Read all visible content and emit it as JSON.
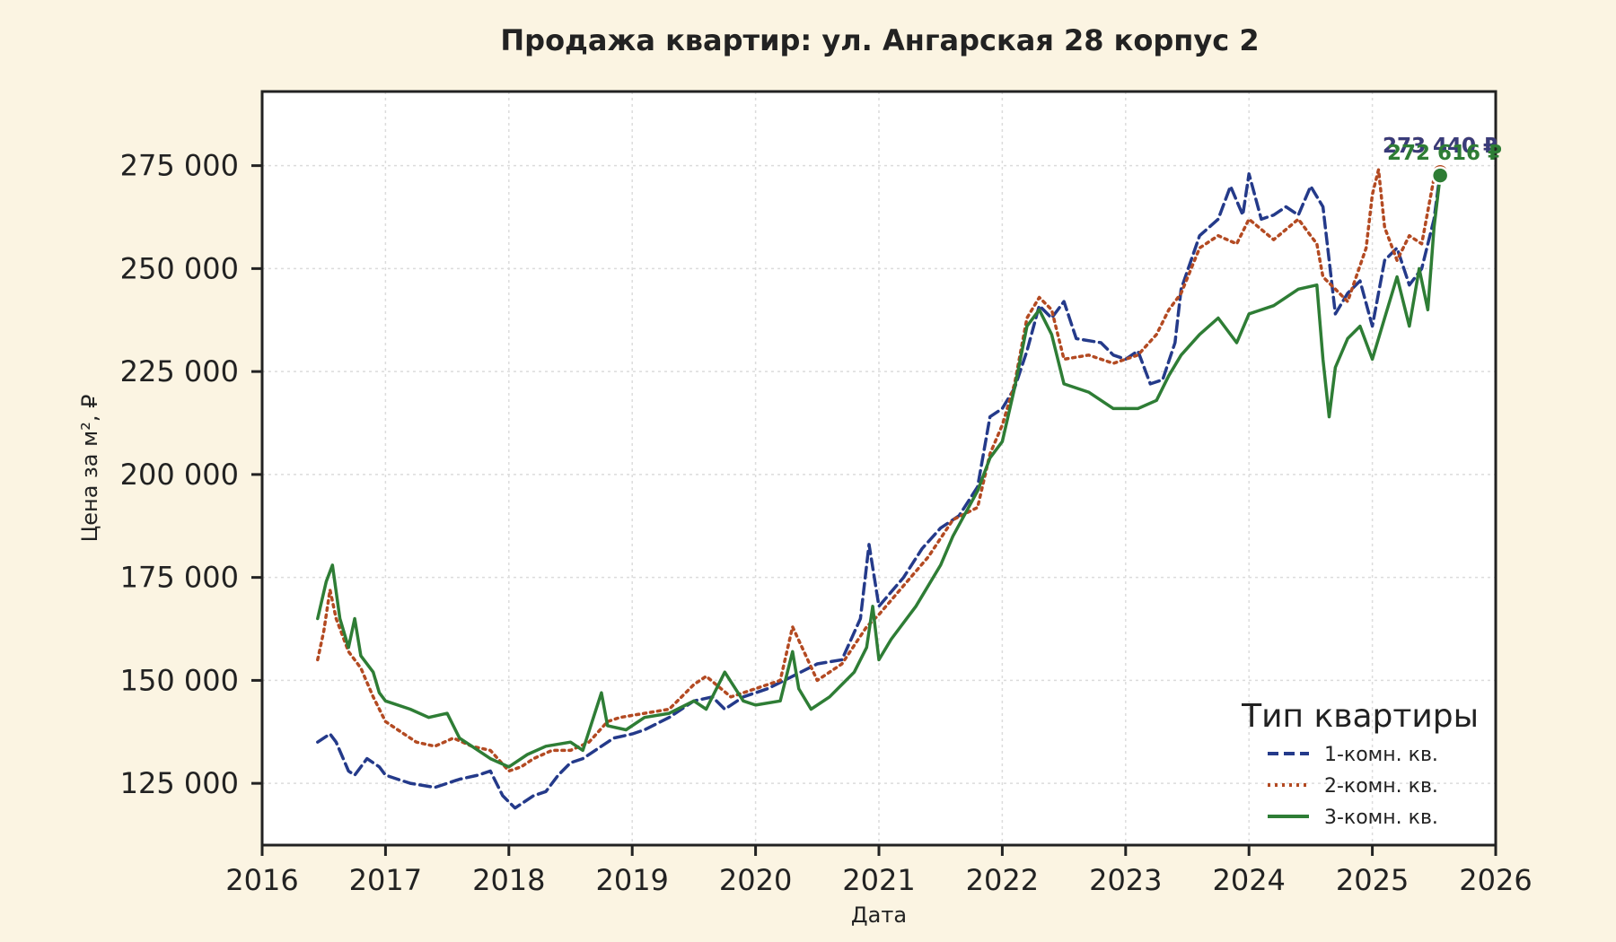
{
  "chart_data": {
    "type": "line",
    "title": "Продажа квартир: ул. Ангарская 28 корпус 2",
    "xlabel": "Дата",
    "ylabel": "Цена за м², ₽",
    "xlim": [
      2016,
      2026
    ],
    "ylim": [
      110000,
      293000
    ],
    "xticks": [
      2016,
      2017,
      2018,
      2019,
      2020,
      2021,
      2022,
      2023,
      2024,
      2025,
      2026
    ],
    "yticks": [
      125000,
      150000,
      175000,
      200000,
      225000,
      250000,
      275000
    ],
    "ytick_labels": [
      "125 000",
      "150 000",
      "175 000",
      "200 000",
      "225 000",
      "250 000",
      "275 000"
    ],
    "grid": true,
    "legend": {
      "title": "Тип квартиры",
      "placement": "lower-right"
    },
    "series": [
      {
        "name": "1-комн. кв.",
        "color": "#243a8a",
        "style": "dashed",
        "x": [
          2016.45,
          2016.55,
          2016.6,
          2016.7,
          2016.75,
          2016.85,
          2016.95,
          2017.0,
          2017.1,
          2017.2,
          2017.4,
          2017.6,
          2017.75,
          2017.85,
          2017.95,
          2018.05,
          2018.1,
          2018.2,
          2018.3,
          2018.4,
          2018.5,
          2018.6,
          2018.7,
          2018.85,
          2019.0,
          2019.1,
          2019.3,
          2019.5,
          2019.65,
          2019.75,
          2019.9,
          2020.1,
          2020.3,
          2020.5,
          2020.7,
          2020.85,
          2020.92,
          2021.0,
          2021.2,
          2021.35,
          2021.5,
          2021.65,
          2021.8,
          2021.9,
          2022.0,
          2022.1,
          2022.2,
          2022.3,
          2022.4,
          2022.5,
          2022.6,
          2022.8,
          2022.9,
          2023.0,
          2023.1,
          2023.2,
          2023.3,
          2023.4,
          2023.45,
          2023.6,
          2023.75,
          2023.85,
          2023.95,
          2024.0,
          2024.1,
          2024.2,
          2024.3,
          2024.4,
          2024.5,
          2024.6,
          2024.7,
          2024.8,
          2024.9,
          2025.0,
          2025.1,
          2025.2,
          2025.3,
          2025.4,
          2025.5,
          2025.55
        ],
        "values": [
          135000,
          137000,
          135000,
          128000,
          127000,
          131000,
          129000,
          127000,
          126000,
          125000,
          124000,
          126000,
          127000,
          128000,
          122000,
          119000,
          120000,
          122000,
          123000,
          127000,
          130000,
          131000,
          133000,
          136000,
          137000,
          138000,
          141000,
          145000,
          146000,
          143000,
          146000,
          148000,
          151000,
          154000,
          155000,
          165000,
          183000,
          168000,
          175000,
          182000,
          187000,
          190000,
          197000,
          214000,
          216000,
          221000,
          230000,
          241000,
          238000,
          242000,
          233000,
          232000,
          229000,
          228000,
          230000,
          222000,
          223000,
          232000,
          245000,
          258000,
          262000,
          270000,
          263000,
          273000,
          262000,
          263000,
          265000,
          263000,
          270000,
          265000,
          239000,
          244000,
          247000,
          236000,
          252000,
          255000,
          246000,
          250000,
          262000,
          273440
        ]
      },
      {
        "name": "2-комн. кв.",
        "color": "#b34a22",
        "style": "dotted",
        "x": [
          2016.45,
          2016.5,
          2016.55,
          2016.6,
          2016.7,
          2016.8,
          2016.9,
          2017.0,
          2017.1,
          2017.25,
          2017.4,
          2017.55,
          2017.7,
          2017.85,
          2018.0,
          2018.1,
          2018.2,
          2018.35,
          2018.5,
          2018.65,
          2018.8,
          2018.9,
          2019.1,
          2019.3,
          2019.5,
          2019.6,
          2019.8,
          2020.0,
          2020.2,
          2020.3,
          2020.5,
          2020.7,
          2020.9,
          2021.0,
          2021.2,
          2021.4,
          2021.6,
          2021.8,
          2021.9,
          2022.0,
          2022.1,
          2022.2,
          2022.3,
          2022.4,
          2022.5,
          2022.7,
          2022.9,
          2023.1,
          2023.25,
          2023.35,
          2023.45,
          2023.6,
          2023.75,
          2023.9,
          2024.0,
          2024.2,
          2024.4,
          2024.5,
          2024.55,
          2024.6,
          2024.7,
          2024.8,
          2024.95,
          2025.0,
          2025.05,
          2025.1,
          2025.2,
          2025.3,
          2025.4,
          2025.5,
          2025.55
        ],
        "values": [
          155000,
          162000,
          172000,
          165000,
          157000,
          153000,
          146000,
          140000,
          138000,
          135000,
          134000,
          136000,
          134000,
          133000,
          128000,
          129000,
          131000,
          133000,
          133000,
          135000,
          140000,
          141000,
          142000,
          143000,
          149000,
          151000,
          146000,
          148000,
          150000,
          163000,
          150000,
          154000,
          163000,
          166000,
          173000,
          180000,
          189000,
          192000,
          205000,
          212000,
          222000,
          238000,
          243000,
          240000,
          228000,
          229000,
          227000,
          229000,
          234000,
          240000,
          244000,
          255000,
          258000,
          256000,
          262000,
          257000,
          262000,
          258000,
          256000,
          248000,
          245000,
          242000,
          255000,
          268000,
          274000,
          260000,
          252000,
          258000,
          256000,
          272000,
          273440
        ]
      },
      {
        "name": "3-комн. кв.",
        "color": "#2e7d35",
        "style": "solid",
        "x": [
          2016.45,
          2016.52,
          2016.57,
          2016.63,
          2016.7,
          2016.75,
          2016.8,
          2016.9,
          2016.95,
          2017.0,
          2017.2,
          2017.35,
          2017.5,
          2017.6,
          2017.7,
          2017.85,
          2018.0,
          2018.15,
          2018.3,
          2018.5,
          2018.6,
          2018.75,
          2018.8,
          2018.95,
          2019.1,
          2019.3,
          2019.5,
          2019.6,
          2019.75,
          2019.9,
          2020.0,
          2020.2,
          2020.3,
          2020.35,
          2020.45,
          2020.6,
          2020.8,
          2020.9,
          2020.95,
          2021.0,
          2021.1,
          2021.3,
          2021.5,
          2021.6,
          2021.8,
          2021.9,
          2022.0,
          2022.1,
          2022.2,
          2022.3,
          2022.4,
          2022.5,
          2022.7,
          2022.9,
          2023.1,
          2023.25,
          2023.35,
          2023.45,
          2023.6,
          2023.75,
          2023.9,
          2024.0,
          2024.2,
          2024.4,
          2024.55,
          2024.6,
          2024.65,
          2024.7,
          2024.8,
          2024.9,
          2025.0,
          2025.1,
          2025.2,
          2025.3,
          2025.38,
          2025.45,
          2025.5,
          2025.55
        ],
        "values": [
          165000,
          174000,
          178000,
          165000,
          158000,
          165000,
          156000,
          152000,
          147000,
          145000,
          143000,
          141000,
          142000,
          136000,
          134000,
          131000,
          129000,
          132000,
          134000,
          135000,
          133000,
          147000,
          139000,
          138000,
          141000,
          142000,
          145000,
          143000,
          152000,
          145000,
          144000,
          145000,
          157000,
          148000,
          143000,
          146000,
          152000,
          158000,
          168000,
          155000,
          160000,
          168000,
          178000,
          185000,
          196000,
          204000,
          208000,
          221000,
          236000,
          240000,
          234000,
          222000,
          220000,
          216000,
          216000,
          218000,
          224000,
          229000,
          234000,
          238000,
          232000,
          239000,
          241000,
          245000,
          246000,
          228000,
          214000,
          226000,
          233000,
          236000,
          228000,
          238000,
          248000,
          236000,
          250000,
          240000,
          260000,
          272616
        ]
      }
    ],
    "end_annotations": [
      "273 440 ₽",
      "272 616 ₽"
    ]
  }
}
